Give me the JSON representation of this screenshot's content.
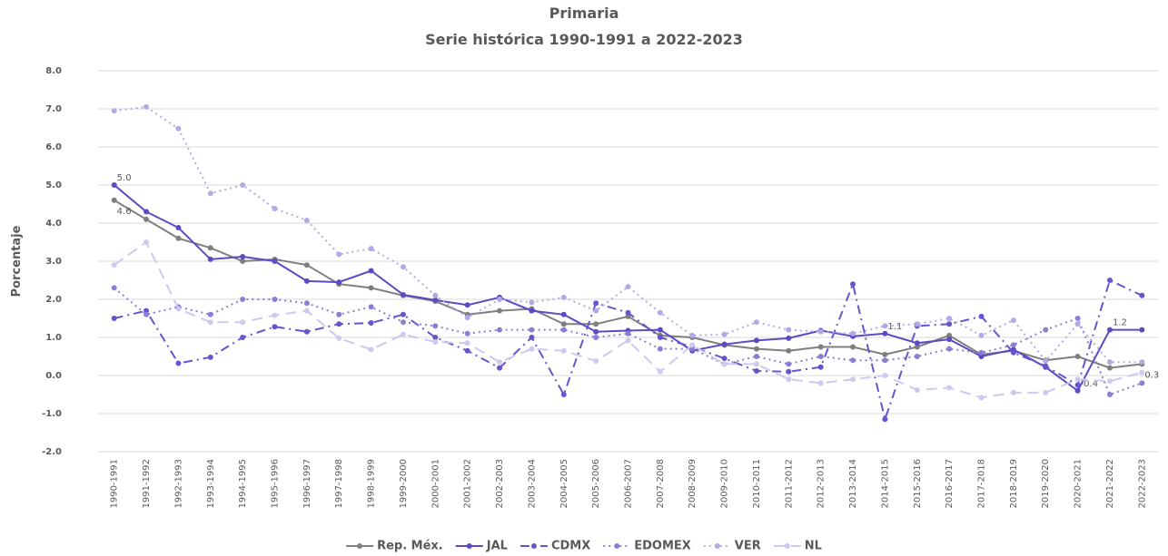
{
  "chart_data": {
    "type": "line",
    "title": "Primaria",
    "subtitle": "Serie histórica 1990-1991 a 2022-2023",
    "y_label": "Porcentaje",
    "grid": true,
    "legend": "bottom",
    "categories": [
      "1990-1991",
      "1991-1992",
      "1992-1993",
      "1993-1994",
      "1994-1995",
      "1995-1996",
      "1996-1997",
      "1997-1998",
      "1998-1999",
      "1999-2000",
      "2000-2001",
      "2001-2002",
      "2002-2003",
      "2003-2004",
      "2004-2005",
      "2005-2006",
      "2006-2007",
      "2007-2008",
      "2008-2009",
      "2009-2010",
      "2010-2011",
      "2011-2012",
      "2012-2013",
      "2013-2014",
      "2014-2015",
      "2015-2016",
      "2016-2017",
      "2017-2018",
      "2018-2019",
      "2019-2020",
      "2020-2021",
      "2021-2022",
      "2022-2023"
    ],
    "ylim": [
      -2,
      8
    ],
    "yticks": [
      {
        "value": -2,
        "label": "-2.0"
      },
      {
        "value": -1,
        "label": "-1.0"
      },
      {
        "value": 0,
        "label": "0.0"
      },
      {
        "value": 1,
        "label": "1.0"
      },
      {
        "value": 2,
        "label": "2.0"
      },
      {
        "value": 3,
        "label": "3.0"
      },
      {
        "value": 4,
        "label": "4.0"
      },
      {
        "value": 5,
        "label": "5.0"
      },
      {
        "value": 6,
        "label": "6.0"
      },
      {
        "value": 7,
        "label": "7.0"
      },
      {
        "value": 8,
        "label": "8.0"
      }
    ],
    "series": [
      {
        "name": "Rep. Méx.",
        "color": "#7f7f7f",
        "line_style": "solid",
        "values": [
          4.6,
          4.1,
          3.6,
          3.35,
          3.0,
          3.05,
          2.9,
          2.4,
          2.3,
          2.1,
          1.95,
          1.6,
          1.7,
          1.75,
          1.35,
          1.35,
          1.55,
          1.05,
          1.0,
          0.8,
          0.7,
          0.65,
          0.75,
          0.75,
          0.55,
          0.75,
          1.05,
          0.55,
          0.65,
          0.4,
          0.5,
          0.2,
          0.3
        ],
        "value_labels": [
          "4.6",
          null,
          null,
          null,
          null,
          null,
          null,
          null,
          null,
          null,
          null,
          null,
          null,
          null,
          null,
          null,
          null,
          null,
          null,
          null,
          null,
          null,
          null,
          null,
          null,
          null,
          null,
          null,
          null,
          null,
          null,
          null,
          "0.3"
        ]
      },
      {
        "name": "JAL",
        "color": "#5b4bc4",
        "line_style": "solid",
        "values": [
          5.0,
          4.3,
          3.88,
          3.05,
          3.12,
          3.0,
          2.48,
          2.45,
          2.75,
          2.12,
          1.98,
          1.85,
          2.05,
          1.7,
          1.6,
          1.15,
          1.18,
          1.2,
          0.65,
          0.82,
          0.92,
          0.98,
          1.18,
          1.03,
          1.1,
          0.85,
          0.95,
          0.5,
          0.68,
          0.22,
          -0.4,
          1.2,
          1.2
        ],
        "value_labels": [
          "5.0",
          null,
          null,
          null,
          null,
          null,
          null,
          null,
          null,
          null,
          null,
          null,
          null,
          null,
          null,
          null,
          null,
          null,
          null,
          null,
          null,
          null,
          null,
          null,
          "1.1",
          null,
          null,
          null,
          null,
          null,
          "-0.4",
          "1.2",
          null
        ]
      },
      {
        "name": "CDMX",
        "color": "#6655cc",
        "line_style": "dashdot",
        "values": [
          1.5,
          1.7,
          0.32,
          0.48,
          1.0,
          1.28,
          1.15,
          1.35,
          1.38,
          1.6,
          1.0,
          0.65,
          0.2,
          1.0,
          -0.5,
          1.9,
          1.65,
          1.0,
          0.75,
          0.45,
          0.12,
          0.1,
          0.22,
          2.4,
          -1.15,
          1.3,
          1.35,
          1.55,
          0.6,
          0.25,
          -0.25,
          2.5,
          2.1
        ]
      },
      {
        "name": "EDOMEX",
        "color": "#8a7fd6",
        "line_style": "dotted",
        "values": [
          2.3,
          1.6,
          1.8,
          1.6,
          2.0,
          2.0,
          1.9,
          1.6,
          1.8,
          1.4,
          1.3,
          1.1,
          1.2,
          1.2,
          1.2,
          1.0,
          1.1,
          0.7,
          0.7,
          0.3,
          0.5,
          0.3,
          0.5,
          0.4,
          0.4,
          0.5,
          0.7,
          0.6,
          0.8,
          1.2,
          1.5,
          -0.5,
          -0.2
        ]
      },
      {
        "name": "VER",
        "color": "#b3a9e6",
        "line_style": "dotted",
        "values": [
          6.95,
          7.05,
          6.48,
          4.78,
          5.0,
          4.38,
          4.07,
          3.18,
          3.33,
          2.85,
          2.1,
          1.52,
          2.0,
          1.92,
          2.05,
          1.7,
          2.33,
          1.65,
          1.05,
          1.08,
          1.4,
          1.2,
          1.15,
          1.1,
          1.3,
          1.35,
          1.5,
          1.05,
          1.45,
          0.38,
          1.35,
          0.35,
          0.35
        ]
      },
      {
        "name": "NL",
        "color": "#cfc8ef",
        "line_style": "dashed",
        "values": [
          2.9,
          3.5,
          1.75,
          1.4,
          1.4,
          1.58,
          1.7,
          0.98,
          0.68,
          1.08,
          0.88,
          0.85,
          0.35,
          0.7,
          0.65,
          0.38,
          0.92,
          0.1,
          0.8,
          0.3,
          0.3,
          -0.1,
          -0.2,
          -0.1,
          0.0,
          -0.38,
          -0.32,
          -0.58,
          -0.45,
          -0.45,
          -0.1,
          -0.15,
          0.08
        ]
      }
    ]
  }
}
